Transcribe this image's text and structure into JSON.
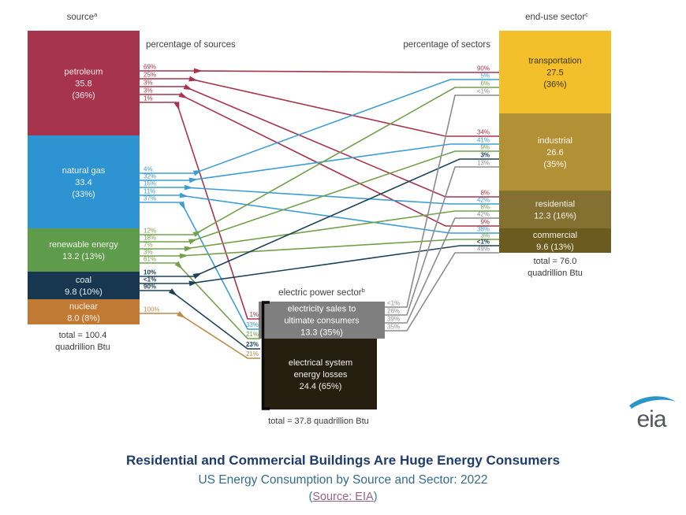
{
  "header": {
    "source_label": "source",
    "source_sup": "a",
    "end_use_label": "end-use sector",
    "end_use_sup": "c",
    "electric_label": "electric power sector",
    "electric_sup": "b",
    "pct_of_sources": "percentage of sources",
    "pct_of_sectors": "percentage of sectors"
  },
  "totals": {
    "source_line1": "total = 100.4",
    "source_line2": "quadrillion Btu",
    "end_use_line1": "total = 76.0",
    "end_use_line2": "quadrillion Btu",
    "electric": "total = 37.8 quadrillion Btu"
  },
  "footer": {
    "title": "Residential and Commercial Buildings Are Huge Energy Consumers",
    "subtitle": "US Energy Consumption by Source and Sector: 2022",
    "source_open": "(",
    "source_link": "Source: EIA",
    "source_close": ")"
  },
  "logo": {
    "text": "eia"
  },
  "chart_data": {
    "type": "sankey-flow",
    "units": "quadrillion Btu",
    "sources": [
      {
        "id": "petroleum",
        "name": "petroleum",
        "value": 35.8,
        "share_pct": 36,
        "label_lines": [
          "petroleum",
          "35.8",
          "(36%)"
        ],
        "color": "#A6344D",
        "text_color": "#F6E8EA"
      },
      {
        "id": "natural_gas",
        "name": "natural gas",
        "value": 33.4,
        "share_pct": 33,
        "label_lines": [
          "natural gas",
          "33.4",
          "(33%)"
        ],
        "color": "#2E93D1",
        "text_color": "#EAF4FB"
      },
      {
        "id": "renewable",
        "name": "renewable energy",
        "value": 13.2,
        "share_pct": 13,
        "label_lines": [
          "renewable energy",
          "13.2 (13%)"
        ],
        "color": "#5E9B4B",
        "text_color": "#EFF6EB"
      },
      {
        "id": "coal",
        "name": "coal",
        "value": 9.8,
        "share_pct": 10,
        "label_lines": [
          "coal",
          "9.8 (10%)"
        ],
        "color": "#16374F",
        "text_color": "#E8EEF2"
      },
      {
        "id": "nuclear",
        "name": "nuclear",
        "value": 8.0,
        "share_pct": 8,
        "label_lines": [
          "nuclear",
          "8.0 (8%)"
        ],
        "color": "#C17A33",
        "text_color": "#FBF1E6"
      }
    ],
    "sectors": [
      {
        "id": "transportation",
        "name": "transportation",
        "value": 27.5,
        "share_pct": 36,
        "label_lines": [
          "transportation",
          "27.5",
          "(36%)"
        ],
        "color": "#F3C02C",
        "text_color": "#3E3413"
      },
      {
        "id": "industrial",
        "name": "industrial",
        "value": 26.6,
        "share_pct": 35,
        "label_lines": [
          "industrial",
          "26.6",
          "(35%)"
        ],
        "color": "#B29136",
        "text_color": "#FCF8EF"
      },
      {
        "id": "residential",
        "name": "residential",
        "value": 12.3,
        "share_pct": 16,
        "label_lines": [
          "residential",
          "12.3 (16%)"
        ],
        "color": "#847030",
        "text_color": "#F7F4EA"
      },
      {
        "id": "commercial",
        "name": "commercial",
        "value": 9.6,
        "share_pct": 13,
        "label_lines": [
          "commercial",
          "9.6 (13%)"
        ],
        "color": "#6C5B1F",
        "text_color": "#F5F2E8"
      }
    ],
    "electric_power": {
      "sales": {
        "id": "sales",
        "value": 13.3,
        "share_pct": 35,
        "label_lines": [
          "electricity sales to",
          "ultimate consumers",
          "13.3 (35%)"
        ],
        "color": "#7F7F7F",
        "text_color": "#FFFFFF"
      },
      "losses": {
        "id": "losses",
        "value": 24.4,
        "share_pct": 65,
        "label_lines": [
          "electrical system",
          "energy losses",
          "24.4 (65%)"
        ],
        "color": "#261F10",
        "text_color": "#F2EFE9"
      }
    },
    "line_colors": {
      "petroleum": "#A6344D",
      "natural_gas": "#3D9DD4",
      "renewable": "#74A04B",
      "coal": "#1C4258",
      "nuclear": "#BE8A4A",
      "electricity": "#8C8C8C"
    },
    "links": [
      {
        "from": "petroleum",
        "to": "transportation",
        "source_pct": "69%",
        "sector_pct": "90%"
      },
      {
        "from": "petroleum",
        "to": "industrial",
        "source_pct": "25%",
        "sector_pct": "34%"
      },
      {
        "from": "petroleum",
        "to": "residential",
        "source_pct": "3%",
        "sector_pct": "8%"
      },
      {
        "from": "petroleum",
        "to": "commercial",
        "source_pct": "3%",
        "sector_pct": "9%"
      },
      {
        "from": "petroleum",
        "to": "electric",
        "source_pct": "1%",
        "sector_pct": "1%"
      },
      {
        "from": "natural_gas",
        "to": "transportation",
        "source_pct": "4%",
        "sector_pct": "5%"
      },
      {
        "from": "natural_gas",
        "to": "industrial",
        "source_pct": "32%",
        "sector_pct": "41%"
      },
      {
        "from": "natural_gas",
        "to": "residential",
        "source_pct": "15%",
        "sector_pct": "42%"
      },
      {
        "from": "natural_gas",
        "to": "commercial",
        "source_pct": "11%",
        "sector_pct": "38%"
      },
      {
        "from": "natural_gas",
        "to": "electric",
        "source_pct": "37%",
        "sector_pct": "33%"
      },
      {
        "from": "renewable",
        "to": "transportation",
        "source_pct": "12%",
        "sector_pct": "6%"
      },
      {
        "from": "renewable",
        "to": "industrial",
        "source_pct": "18%",
        "sector_pct": "9%"
      },
      {
        "from": "renewable",
        "to": "residential",
        "source_pct": "7%",
        "sector_pct": "8%"
      },
      {
        "from": "renewable",
        "to": "commercial",
        "source_pct": "3%",
        "sector_pct": "3%"
      },
      {
        "from": "renewable",
        "to": "electric",
        "source_pct": "61%",
        "sector_pct": "21%"
      },
      {
        "from": "coal",
        "to": "industrial",
        "source_pct": "10%",
        "sector_pct": "3%"
      },
      {
        "from": "coal",
        "to": "commercial",
        "source_pct": "<1%",
        "sector_pct": "<1%"
      },
      {
        "from": "coal",
        "to": "electric",
        "source_pct": "90%",
        "sector_pct": "23%"
      },
      {
        "from": "nuclear",
        "to": "electric",
        "source_pct": "100%",
        "sector_pct": "21%"
      },
      {
        "from": "electricity",
        "to": "transportation",
        "source_pct": "<1%",
        "sector_pct": "<1%"
      },
      {
        "from": "electricity",
        "to": "industrial",
        "source_pct": "26%",
        "sector_pct": "13%"
      },
      {
        "from": "electricity",
        "to": "residential",
        "source_pct": "39%",
        "sector_pct": "42%"
      },
      {
        "from": "electricity",
        "to": "commercial",
        "source_pct": "35%",
        "sector_pct": "49%"
      }
    ]
  }
}
